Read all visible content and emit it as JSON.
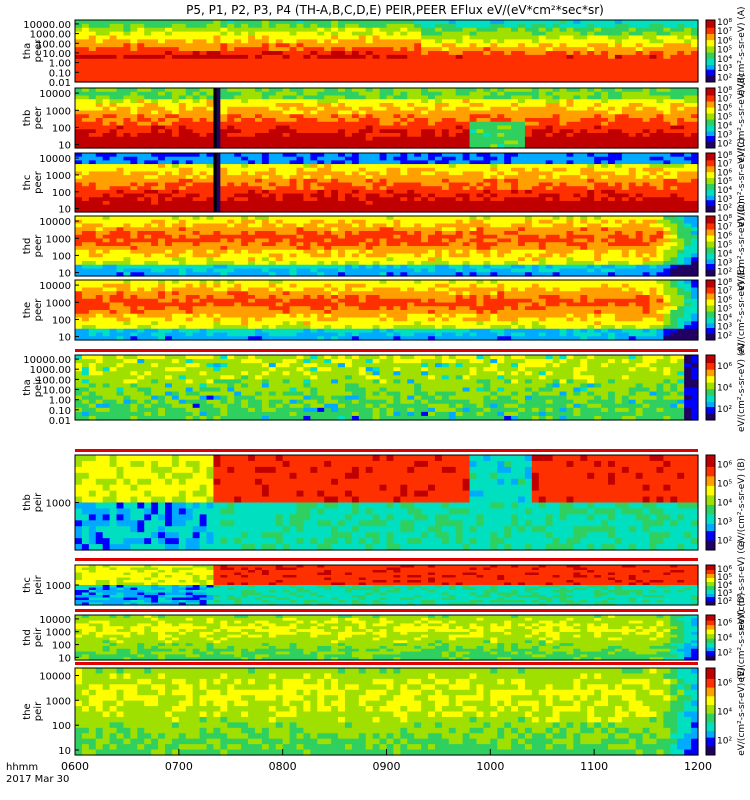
{
  "title": "P5, P1, P2, P3, P4 (TH-A,B,C,D,E) PEIR,PEER EFlux eV/(eV*cm²*sec*sr)",
  "chart_data": {
    "type": "heatmap",
    "title": "P5, P1, P2, P3, P4 (TH-A,B,C,D,E) PEIR,PEER EFlux eV/(eV*cm²*sec*sr)",
    "x_axis": {
      "label_line1": "hhmm",
      "label_line2": "2017 Mar 30",
      "ticks": [
        "0600",
        "0700",
        "0800",
        "0900",
        "1000",
        "1100",
        "1200"
      ],
      "range_hours": [
        6,
        12
      ]
    },
    "panels": [
      {
        "probe": "tha",
        "species": "peer",
        "ylabel": "tha\npeer",
        "yticks": [
          "10000.00",
          "1000.00",
          "100.00",
          "10.00",
          "1.00",
          "0.10",
          "0.01"
        ],
        "ylog_range": [
          -2,
          4.4
        ],
        "cbar_ticks": [
          "10⁸",
          "10⁷",
          "10⁶",
          "10⁵",
          "10⁴",
          "10³",
          "10²"
        ],
        "cbar_exp_range": [
          1.5,
          8.2
        ],
        "cbar_title": "eV/(cm²-s-sr-eV) (A)"
      },
      {
        "probe": "thb",
        "species": "peer",
        "ylabel": "thb\npeer",
        "yticks": [
          "10000",
          "1000",
          "100",
          "10"
        ],
        "ylog_range": [
          0.8,
          4.3
        ],
        "cbar_ticks": [
          "10⁸",
          "10⁷",
          "10⁶",
          "10⁵",
          "10⁴",
          "10³",
          "10²"
        ],
        "cbar_exp_range": [
          1.5,
          8.2
        ],
        "cbar_title": "eV/(cm²-s-sr-eV) (B)"
      },
      {
        "probe": "thc",
        "species": "peer",
        "ylabel": "thc\npeer",
        "yticks": [
          "10000",
          "1000",
          "100",
          "10"
        ],
        "ylog_range": [
          0.8,
          4.3
        ],
        "cbar_ticks": [
          "10⁸",
          "10⁷",
          "10⁶",
          "10⁵",
          "10⁴",
          "10³",
          "10²"
        ],
        "cbar_exp_range": [
          1.5,
          8.2
        ],
        "cbar_title": "eV/(cm²-s-sr-eV) (C)"
      },
      {
        "probe": "thd",
        "species": "peer",
        "ylabel": "thd\npeer",
        "yticks": [
          "10000",
          "1000",
          "100",
          "10"
        ],
        "ylog_range": [
          0.8,
          4.3
        ],
        "cbar_ticks": [
          "10⁸",
          "10⁷",
          "10⁶",
          "10⁵",
          "10⁴",
          "10³",
          "10²"
        ],
        "cbar_exp_range": [
          1.5,
          8.2
        ],
        "cbar_title": "eV/(cm²-s-sr-eV) (D)"
      },
      {
        "probe": "the",
        "species": "peer",
        "ylabel": "the\npeer",
        "yticks": [
          "10000",
          "1000",
          "100",
          "10"
        ],
        "ylog_range": [
          0.8,
          4.3
        ],
        "cbar_ticks": [
          "10⁸",
          "10⁷",
          "10⁶",
          "10⁵",
          "10⁴",
          "10³",
          "10²"
        ],
        "cbar_exp_range": [
          1.5,
          8.2
        ],
        "cbar_title": "eV/(cm²-s-sr-eV) (E)"
      },
      {
        "probe": "tha",
        "species": "peir",
        "ylabel": "tha\npeir",
        "yticks": [
          "10000.00",
          "1000.00",
          "100.00",
          "10.00",
          "1.00",
          "0.10",
          "0.01"
        ],
        "ylog_range": [
          -2,
          4.4
        ],
        "cbar_ticks": [
          "10⁶",
          "10⁴",
          "10²"
        ],
        "cbar_exp_range": [
          1.0,
          7.0
        ],
        "cbar_title": "eV/(cm²-s-sr-eV) (A)"
      },
      {
        "probe": "thb",
        "species": "peir",
        "ylabel": "thb\npeir",
        "yticks": [
          "1000"
        ],
        "ylog_range": [
          1.5,
          4.5
        ],
        "cbar_ticks": [
          "10⁶",
          "10⁵",
          "10⁴",
          "10³",
          "10²"
        ],
        "cbar_exp_range": [
          1.5,
          6.5
        ],
        "cbar_title": "eV/(cm²-s-sr-eV) (B)"
      },
      {
        "probe": "thc",
        "species": "peir",
        "ylabel": "thc\npeir",
        "yticks": [
          "1000"
        ],
        "ylog_range": [
          1.5,
          4.5
        ],
        "cbar_ticks": [
          "10⁶",
          "10⁵",
          "10⁴",
          "10³",
          "10²"
        ],
        "cbar_exp_range": [
          1.5,
          6.5
        ],
        "cbar_title": "eV/(cm²-s-sr-eV) (C)"
      },
      {
        "probe": "thd",
        "species": "peir",
        "ylabel": "thd\npeir",
        "yticks": [
          "10000",
          "1000",
          "100",
          "10"
        ],
        "ylog_range": [
          0.8,
          4.3
        ],
        "cbar_ticks": [
          "10⁶",
          "10⁴",
          "10²"
        ],
        "cbar_exp_range": [
          1.0,
          7.0
        ],
        "cbar_title": "eV/(cm²-s-sr-eV) (D)"
      },
      {
        "probe": "the",
        "species": "peir",
        "ylabel": "the\npeir",
        "yticks": [
          "10000",
          "1000",
          "100",
          "10"
        ],
        "ylog_range": [
          0.8,
          4.3
        ],
        "cbar_ticks": [
          "10⁶",
          "10⁴",
          "10²"
        ],
        "cbar_exp_range": [
          1.0,
          7.0
        ],
        "cbar_title": "eV/(cm²-s-sr-eV) (E)"
      }
    ],
    "colormap": [
      "#200060",
      "#0000ff",
      "#00aaff",
      "#00e0c0",
      "#30d060",
      "#a0e000",
      "#ffff00",
      "#ffa000",
      "#ff3000",
      "#c00000"
    ],
    "features": [
      {
        "panels": [
          "thb peer",
          "thc peer"
        ],
        "time": "0735",
        "description": "vertical artifact stripe"
      },
      {
        "panels": [
          "thb peer",
          "thb peir"
        ],
        "time_range": [
          "0960",
          "1020"
        ],
        "description": "flux dropout gap"
      }
    ]
  }
}
